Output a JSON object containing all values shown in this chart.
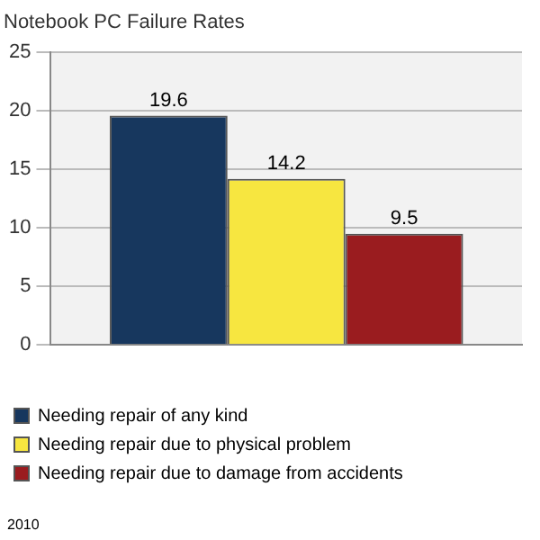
{
  "chart_data": {
    "type": "bar",
    "title": "Notebook PC Failure Rates",
    "categories": [
      null
    ],
    "series": [
      {
        "name": "Needing repair of any kind",
        "color": "#17375e",
        "values": [
          19.6
        ]
      },
      {
        "name": "Needing repair due to physical problem",
        "color": "#f7e640",
        "values": [
          14.2
        ]
      },
      {
        "name": "Needing repair due to damage from accidents",
        "color": "#9a1c1f",
        "values": [
          9.5
        ]
      }
    ],
    "ylim": [
      0,
      25
    ],
    "yticks": [
      0,
      5,
      10,
      15,
      20,
      25
    ],
    "grid": "y",
    "legend": "bottom",
    "data_labels": true,
    "annotations": [
      "2010"
    ]
  }
}
